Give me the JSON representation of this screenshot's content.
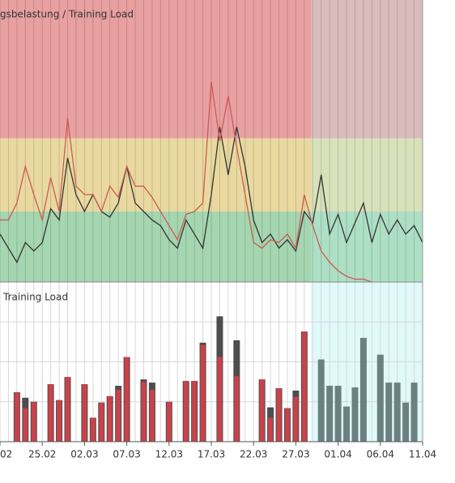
{
  "chart_data": [
    {
      "type": "line",
      "title": "gsbelastung / Training Load",
      "xlim": [
        0,
        50
      ],
      "ylim": [
        0,
        100
      ],
      "zones": [
        {
          "from": 0,
          "to": 25,
          "color": "#a5d6b0"
        },
        {
          "from": 25,
          "to": 51,
          "color": "#e9d9a0"
        },
        {
          "from": 51,
          "to": 100,
          "color": "#e8a0a1"
        }
      ],
      "x": [
        0,
        1,
        2,
        3,
        4,
        5,
        6,
        7,
        8,
        9,
        10,
        11,
        12,
        13,
        14,
        15,
        16,
        17,
        18,
        19,
        20,
        21,
        22,
        23,
        24,
        25,
        26,
        27,
        28,
        29,
        30,
        31,
        32,
        33,
        34,
        35,
        36,
        37,
        38,
        39,
        40,
        41,
        42,
        43,
        44,
        45,
        46,
        47,
        48,
        49,
        50
      ],
      "series": [
        {
          "color": "#333333",
          "values": [
            17,
            12,
            7,
            14,
            11,
            14,
            26,
            22,
            44,
            31,
            25,
            31,
            25,
            23,
            28,
            41,
            28,
            25,
            22,
            20,
            15,
            12,
            22,
            17,
            12,
            31,
            55,
            38,
            55,
            41,
            22,
            14,
            17,
            12,
            15,
            11,
            25,
            21,
            38,
            17,
            24,
            14,
            21,
            28,
            14,
            24,
            17,
            22,
            17,
            20,
            14
          ]
        },
        {
          "color": "#cf5a52",
          "values": [
            22,
            22,
            28,
            41,
            31,
            22,
            37,
            25,
            58,
            34,
            31,
            31,
            25,
            34,
            30,
            41,
            34,
            34,
            30,
            25,
            20,
            15,
            24,
            25,
            28,
            71,
            50,
            66,
            48,
            31,
            14,
            12,
            15,
            14,
            17,
            12,
            31,
            20,
            11,
            7,
            4,
            2,
            1,
            1,
            0,
            null,
            null,
            null,
            null,
            null,
            null
          ]
        }
      ]
    },
    {
      "type": "bar",
      "title": "Training Load",
      "xlim": [
        0,
        50
      ],
      "ylim": [
        0,
        200
      ],
      "xticks": [
        {
          "value": 0,
          "label": "02"
        },
        {
          "value": 5,
          "label": "25.02"
        },
        {
          "value": 10,
          "label": "02.03"
        },
        {
          "value": 15,
          "label": "07.03"
        },
        {
          "value": 20,
          "label": "12.03"
        },
        {
          "value": 25,
          "label": "17.03"
        },
        {
          "value": 30,
          "label": "22.03"
        },
        {
          "value": 35,
          "label": "27.03"
        },
        {
          "value": 40,
          "label": "01.04"
        },
        {
          "value": 45,
          "label": "06.04"
        },
        {
          "value": 50,
          "label": "11.04"
        }
      ],
      "ygrid": [
        50,
        100,
        150
      ],
      "x": [
        0,
        1,
        2,
        3,
        4,
        5,
        6,
        7,
        8,
        9,
        10,
        11,
        12,
        13,
        14,
        15,
        16,
        17,
        18,
        19,
        20,
        21,
        22,
        23,
        24,
        25,
        26,
        27,
        28,
        29,
        30,
        31,
        32,
        33,
        34,
        35,
        36,
        37,
        38,
        39,
        40,
        41,
        42,
        43,
        44,
        45,
        46,
        47,
        48,
        49,
        50
      ],
      "series": [
        {
          "color": "#4d4d4d",
          "values": [
            null,
            null,
            62,
            55,
            50,
            null,
            72,
            52,
            81,
            null,
            72,
            30,
            49,
            57,
            70,
            106,
            null,
            78,
            74,
            null,
            50,
            null,
            76,
            76,
            124,
            null,
            157,
            null,
            127,
            null,
            null,
            78,
            43,
            67,
            42,
            64,
            138,
            null,
            null,
            null,
            null,
            null,
            null,
            null,
            null,
            null,
            null,
            null,
            null,
            null,
            null
          ]
        },
        {
          "color": "#c9424a",
          "values": [
            null,
            null,
            62,
            42,
            50,
            null,
            72,
            52,
            81,
            null,
            72,
            30,
            49,
            57,
            65,
            106,
            null,
            75,
            65,
            null,
            50,
            null,
            76,
            76,
            121,
            null,
            106,
            null,
            82,
            null,
            null,
            78,
            30,
            67,
            42,
            56,
            138,
            null,
            null,
            null,
            null,
            null,
            null,
            null,
            null,
            null,
            null,
            null,
            null,
            null,
            null
          ]
        },
        {
          "color": "#6b8081",
          "values": [
            null,
            null,
            null,
            null,
            null,
            null,
            null,
            null,
            null,
            null,
            null,
            null,
            null,
            null,
            null,
            null,
            null,
            null,
            null,
            null,
            null,
            null,
            null,
            null,
            null,
            null,
            null,
            null,
            null,
            null,
            null,
            null,
            null,
            null,
            null,
            null,
            null,
            null,
            103,
            70,
            70,
            44,
            68,
            130,
            null,
            109,
            74,
            74,
            49,
            74,
            null
          ]
        }
      ]
    }
  ]
}
